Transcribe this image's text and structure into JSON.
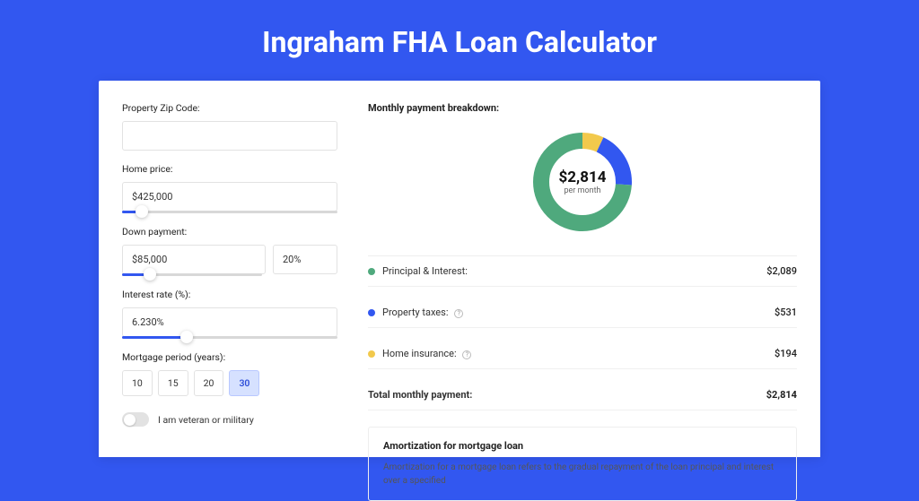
{
  "colors": {
    "bg": "#3257f0",
    "pi": "#4fa97d",
    "tax": "#3257f0",
    "ins": "#f2c94c",
    "border": "#e2e2e2"
  },
  "header": {
    "title": "Ingraham FHA Loan Calculator"
  },
  "form": {
    "zip": {
      "label": "Property Zip Code:",
      "value": ""
    },
    "price": {
      "label": "Home price:",
      "value": "$425,000",
      "slider_pct": 9
    },
    "down": {
      "label": "Down payment:",
      "amount": "$85,000",
      "pct": "20%",
      "slider_pct": 20
    },
    "rate": {
      "label": "Interest rate (%):",
      "value": "6.230%",
      "slider_pct": 30
    },
    "period": {
      "label": "Mortgage period (years):",
      "options": [
        "10",
        "15",
        "20",
        "30"
      ],
      "selected": "30"
    },
    "veteran": {
      "label": "I am veteran or military",
      "on": false
    }
  },
  "breakdown": {
    "title": "Monthly payment breakdown:",
    "total": "$2,814",
    "total_sub": "per month",
    "items": [
      {
        "key": "pi",
        "label": "Principal & Interest:",
        "value": "$2,089",
        "color": "#4fa97d",
        "pct": 74,
        "help": false
      },
      {
        "key": "tax",
        "label": "Property taxes:",
        "value": "$531",
        "color": "#3257f0",
        "pct": 19,
        "help": true
      },
      {
        "key": "ins",
        "label": "Home insurance:",
        "value": "$194",
        "color": "#f2c94c",
        "pct": 7,
        "help": true
      }
    ],
    "total_row": {
      "label": "Total monthly payment:",
      "value": "$2,814"
    }
  },
  "amort": {
    "title": "Amortization for mortgage loan",
    "text": "Amortization for a mortgage loan refers to the gradual repayment of the loan principal and interest over a specified"
  }
}
